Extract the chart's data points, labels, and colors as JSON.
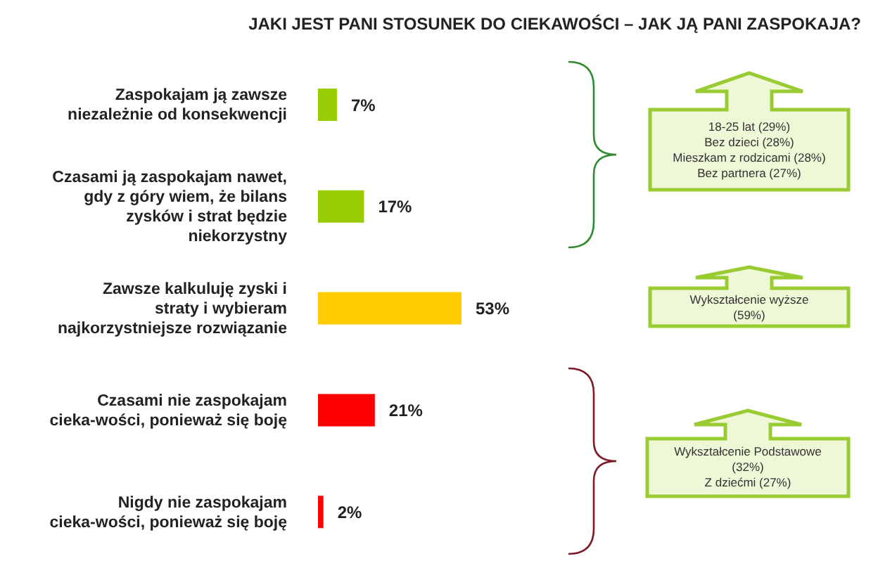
{
  "chart_data": {
    "type": "bar",
    "orientation": "horizontal",
    "title": "JAKI JEST PANI STOSUNEK DO CIEKAWOŚCI – JAK JĄ PANI ZASPOKAJA?",
    "categories": [
      "Zaspokajam ją zawsze niezależnie od konsekwencji",
      "Czasami ją zaspokajam nawet, gdy z góry wiem, że bilans zysków i strat będzie niekorzystny",
      "Zawsze kalkuluję zyski i straty i wybieram najkorzystniejsze rozwiązanie",
      "Czasami nie zaspokajam cieka-wości, ponieważ się boję",
      "Nigdy nie zaspokajam cieka-wości, ponieważ się boję"
    ],
    "values": [
      7,
      17,
      53,
      21,
      2
    ],
    "colors": [
      "#99cc00",
      "#99cc00",
      "#ffcc00",
      "#ff0000",
      "#ff0000"
    ],
    "value_labels": [
      "7%",
      "17%",
      "53%",
      "21%",
      "2%"
    ],
    "annotations": [
      "18-25 lat (29%)\nBez dzieci (28%)\nMieszkam z rodzicami (28%)\nBez partnera (27%)",
      "Wykształcenie wyższe\n(59%)",
      "Wykształcenie Podstawowe\n(32%)\nZ dziećmi (27%)"
    ]
  }
}
